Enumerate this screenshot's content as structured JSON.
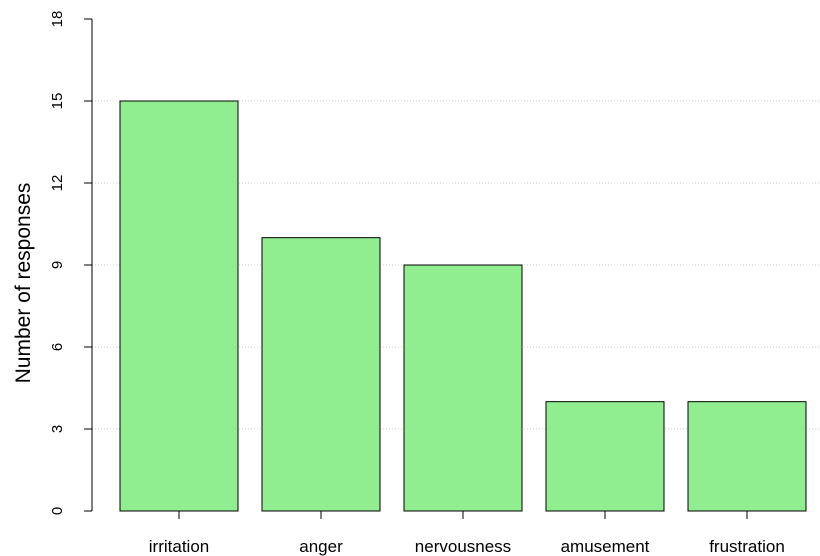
{
  "chart_data": {
    "type": "bar",
    "title": "",
    "xlabel": "",
    "ylabel": "Number of responses",
    "categories": [
      "irritation",
      "anger",
      "nervousness",
      "amusement",
      "frustration"
    ],
    "values": [
      15,
      10,
      9,
      4,
      4
    ],
    "ylim": [
      0,
      18
    ],
    "yticks": [
      0,
      3,
      6,
      9,
      12,
      15,
      18
    ],
    "grid": "horizontal dotted",
    "legend": "none",
    "colors": {
      "bar_fill": "#90EE90",
      "bar_stroke": "#000000",
      "grid": "#cccccc"
    }
  }
}
